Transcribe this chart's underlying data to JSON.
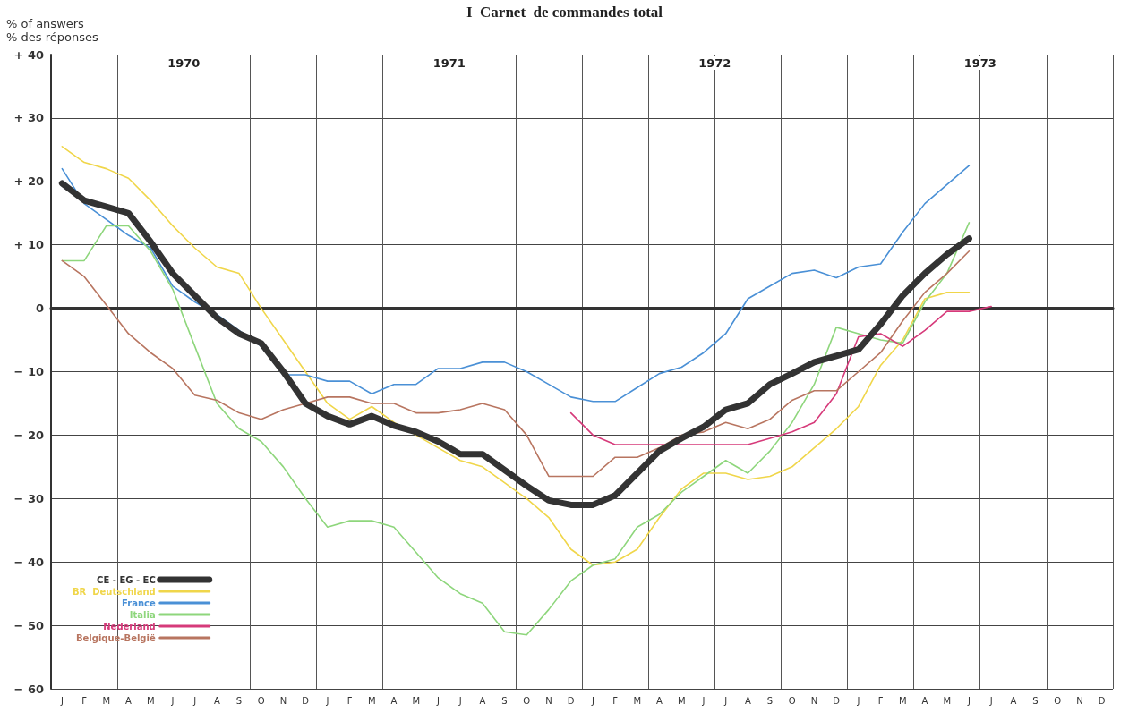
{
  "chart_data": {
    "type": "line",
    "title": "I  Carnet  de commandes total",
    "ylabel": "% of answers\n% des réponses",
    "categories": [
      "J",
      "F",
      "M",
      "A",
      "M",
      "J",
      "J",
      "A",
      "S",
      "O",
      "N",
      "D",
      "J",
      "F",
      "M",
      "A",
      "M",
      "J",
      "J",
      "A",
      "S",
      "O",
      "N",
      "D",
      "J",
      "F",
      "M",
      "A",
      "M",
      "J",
      "J",
      "A",
      "S",
      "O",
      "N",
      "D",
      "J",
      "F",
      "M",
      "A",
      "M",
      "J",
      "J",
      "A",
      "S",
      "O",
      "N",
      "D"
    ],
    "series": [
      {
        "name": "CE - EG - EC",
        "color": "#333333",
        "values": [
          19.7,
          17,
          16,
          15,
          10.5,
          5.5,
          2,
          -1.5,
          -4,
          -5.5,
          -10,
          -15,
          -17,
          -18.3,
          -17,
          -18.5,
          -19.5,
          -21,
          -23,
          -23,
          -25.5,
          -28,
          -30.3,
          -31,
          -31,
          -29.5,
          -26,
          -22.5,
          -20.5,
          -18.7,
          -16,
          -15,
          -12,
          -10.3,
          -8.5,
          -7.5,
          -6.5,
          -2.5,
          2,
          5.5,
          8.5,
          11,
          null,
          null,
          null,
          null,
          null,
          null
        ]
      },
      {
        "name": "BR  Deutschland",
        "color": "#f0d64a",
        "values": [
          25.5,
          23,
          22,
          20.5,
          17,
          13,
          9.5,
          6.5,
          5.5,
          0,
          -5,
          -10,
          -15,
          -17.5,
          -15.5,
          -18,
          -20,
          -22,
          -24,
          -25,
          -27.5,
          -30,
          -33,
          -38,
          -40.5,
          -40,
          -38,
          -33,
          -28.5,
          -26,
          -26,
          -27,
          -26.5,
          -25,
          -22,
          -19,
          -15.5,
          -9,
          -5,
          1.5,
          2.5,
          2.5,
          null,
          null,
          null,
          null,
          null,
          null
        ]
      },
      {
        "name": "France",
        "color": "#4a90d6",
        "values": [
          22,
          16.5,
          14,
          11.5,
          9.5,
          3.5,
          1,
          -1,
          -3.5,
          -6,
          -10.5,
          -10.5,
          -11.5,
          -11.5,
          -13.5,
          -12,
          -12,
          -9.5,
          -9.5,
          -8.5,
          -8.5,
          -10,
          -12,
          -14,
          -14.7,
          -14.7,
          -12.5,
          -10.3,
          -9.3,
          -7,
          -4,
          1.5,
          3.5,
          5.5,
          6,
          4.8,
          6.5,
          7,
          12,
          16.5,
          19.5,
          22.5,
          null,
          null,
          null,
          null,
          null,
          null
        ]
      },
      {
        "name": "Italia",
        "color": "#8ed67c",
        "values": [
          7.5,
          7.5,
          13,
          13,
          9,
          3,
          -6,
          -15,
          -19,
          -21,
          -25,
          -30,
          -34.5,
          -33.5,
          -33.5,
          -34.5,
          -38.5,
          -42.5,
          -45,
          -46.5,
          -51,
          -51.5,
          -47.5,
          -43,
          -40.5,
          -39.5,
          -34.5,
          -32.5,
          -29,
          -26.5,
          -24,
          -26,
          -22.5,
          -18,
          -12,
          -3,
          -4,
          -5,
          -5.5,
          1,
          5.5,
          13.5,
          null,
          null,
          null,
          null,
          null,
          null
        ]
      },
      {
        "name": "Nederland",
        "color": "#d63a7a",
        "values": [
          null,
          null,
          null,
          null,
          null,
          null,
          null,
          null,
          null,
          null,
          null,
          null,
          null,
          null,
          null,
          null,
          null,
          null,
          null,
          null,
          null,
          null,
          null,
          -16.5,
          -20,
          -21.5,
          -21.5,
          -21.5,
          -21.5,
          -21.5,
          -21.5,
          -21.5,
          -20.5,
          -19.5,
          -18,
          -13.5,
          -4.5,
          -4,
          -6,
          -3.5,
          -0.5,
          -0.5,
          0.3,
          null,
          null,
          null,
          null,
          null
        ]
      },
      {
        "name": "Belgique-België",
        "color": "#b87560",
        "values": [
          7.5,
          5,
          0.5,
          -4,
          -7,
          -9.5,
          -13.7,
          -14.5,
          -16.5,
          -17.5,
          -16,
          -15,
          -14,
          -14,
          -15,
          -15,
          -16.5,
          -16.5,
          -16,
          -15,
          -16,
          -20,
          -26.5,
          -26.5,
          -26.5,
          -23.5,
          -23.5,
          -22,
          -20,
          -19.5,
          -18,
          -19,
          -17.5,
          -14.5,
          -13,
          -13,
          -10,
          -7,
          -2,
          2.5,
          5.5,
          9,
          null,
          null,
          null,
          null,
          null,
          null
        ]
      }
    ],
    "ylim": [
      -60,
      40
    ],
    "yticks": [
      {
        "value": -60,
        "label": "− 60"
      },
      {
        "value": -50,
        "label": "− 50"
      },
      {
        "value": -40,
        "label": "− 40"
      },
      {
        "value": -30,
        "label": "− 30"
      },
      {
        "value": -20,
        "label": "− 20"
      },
      {
        "value": -10,
        "label": "− 10"
      },
      0,
      {
        "value": 10,
        "label": "+ 10"
      },
      {
        "value": 20,
        "label": "+ 20"
      },
      {
        "value": 30,
        "label": "+ 30"
      },
      {
        "value": 40,
        "label": "+ 40"
      }
    ],
    "annotations": [
      "1970",
      "1971",
      "1972",
      "1973"
    ],
    "grid": true,
    "legend": "bottom left",
    "marker": "none",
    "line_style": "solid"
  }
}
